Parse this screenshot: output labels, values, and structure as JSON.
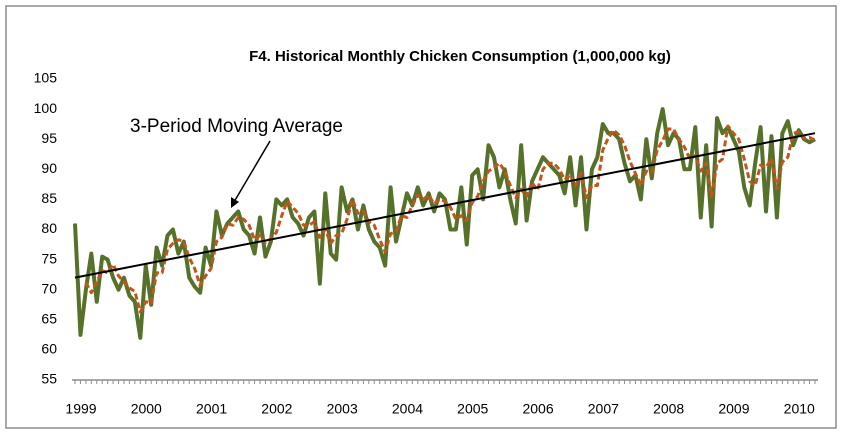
{
  "chart_data": {
    "type": "line",
    "title": "F4.  Historical Monthly Chicken Consumption (1,000,000 kg)",
    "annotation": "3-Period Moving Average",
    "categories": [
      "1999",
      null,
      null,
      null,
      null,
      null,
      null,
      null,
      null,
      null,
      null,
      null,
      "2000",
      null,
      null,
      null,
      null,
      null,
      null,
      null,
      null,
      null,
      null,
      null,
      "2001",
      null,
      null,
      null,
      null,
      null,
      null,
      null,
      null,
      null,
      null,
      null,
      "2002",
      null,
      null,
      null,
      null,
      null,
      null,
      null,
      null,
      null,
      null,
      null,
      "2003",
      null,
      null,
      null,
      null,
      null,
      null,
      null,
      null,
      null,
      null,
      null,
      "2004",
      null,
      null,
      null,
      null,
      null,
      null,
      null,
      null,
      null,
      null,
      null,
      "2005",
      null,
      null,
      null,
      null,
      null,
      null,
      null,
      null,
      null,
      null,
      null,
      "2006",
      null,
      null,
      null,
      null,
      null,
      null,
      null,
      null,
      null,
      null,
      null,
      "2007",
      null,
      null,
      null,
      null,
      null,
      null,
      null,
      null,
      null,
      null,
      null,
      "2008",
      null,
      null,
      null,
      null,
      null,
      null,
      null,
      null,
      null,
      null,
      null,
      "2009",
      null,
      null,
      null,
      null,
      null,
      null,
      null,
      null,
      null,
      null,
      null,
      "2010",
      null,
      null,
      null,
      null
    ],
    "series": [
      {
        "color": "#56722a",
        "dashed": false,
        "values": [
          81,
          62.5,
          70,
          76,
          68,
          75.5,
          75,
          72,
          70,
          72,
          69,
          68,
          62,
          74,
          67.5,
          77,
          74,
          79,
          80,
          76,
          78,
          72,
          70.5,
          69.5,
          77,
          74,
          83,
          79,
          81,
          82,
          83,
          80,
          79,
          76,
          82,
          75.5,
          78,
          85,
          84,
          85,
          82,
          81,
          79,
          82,
          83,
          71,
          86,
          76,
          75,
          87,
          83,
          85,
          80,
          84,
          80,
          78,
          77,
          74,
          87,
          78,
          82,
          86,
          84,
          87,
          84,
          86,
          83,
          86,
          85,
          80,
          80,
          87,
          77.5,
          89,
          90,
          85,
          94,
          92,
          87,
          90,
          85,
          81,
          94,
          81.5,
          88,
          90,
          92,
          91,
          90,
          89,
          86,
          92,
          84,
          92,
          80,
          90,
          92,
          97.5,
          96,
          96,
          95,
          91,
          88,
          89,
          85,
          95,
          88.5,
          96,
          100,
          94,
          96,
          95,
          90,
          90,
          97,
          82,
          94,
          80.5,
          98.5,
          96,
          97,
          95,
          93,
          87,
          84,
          91,
          97,
          83,
          95.5,
          82,
          96,
          98,
          94,
          96.5,
          95,
          94.5,
          95
        ]
      },
      {
        "color": "#c0561a",
        "dashed": true,
        "values": [
          null,
          null,
          71.2,
          69.5,
          71.3,
          73.2,
          72.8,
          74.2,
          72.3,
          71.3,
          70.3,
          69.7,
          66.3,
          68,
          67.8,
          72.8,
          72.8,
          76.7,
          77.7,
          78.3,
          78,
          75.3,
          73.5,
          70.7,
          72.3,
          73.5,
          78,
          78.7,
          81,
          80.7,
          82,
          81.7,
          80.7,
          78.3,
          79,
          77.8,
          78.5,
          79.5,
          82.3,
          84.7,
          83.7,
          82.7,
          80.7,
          80.7,
          81.3,
          78.7,
          80,
          77.7,
          79,
          79.3,
          81.7,
          85,
          82.7,
          83,
          81.3,
          80.7,
          78.3,
          76.3,
          79.3,
          79.7,
          82.3,
          82,
          84,
          85.7,
          85,
          85.7,
          84.3,
          85,
          84.7,
          83.7,
          81.7,
          82.3,
          81.5,
          84.5,
          85.5,
          88,
          89.7,
          90.3,
          91,
          89.7,
          87.3,
          85.3,
          86.7,
          85.5,
          87.8,
          86.5,
          90,
          91,
          91,
          90,
          88.3,
          89,
          87.3,
          89.3,
          85.3,
          87.3,
          87.3,
          93.2,
          95.2,
          96.5,
          95.7,
          94,
          91.3,
          89.3,
          87.3,
          89.7,
          89.5,
          93.2,
          94.8,
          96.7,
          96.7,
          95,
          93.7,
          91.7,
          92.3,
          89.7,
          91,
          85.5,
          91,
          91.7,
          97.2,
          96,
          95,
          91.7,
          88,
          87.3,
          90.7,
          90.3,
          91.8,
          86.8,
          91.2,
          92,
          96,
          96.2,
          95.2,
          95.3,
          94.8
        ]
      }
    ],
    "trendline": {
      "color": "#000000",
      "values": [
        72,
        96
      ]
    },
    "ylim": [
      55,
      105
    ],
    "yticks": [
      55,
      60,
      65,
      70,
      75,
      80,
      85,
      90,
      95,
      100,
      105
    ],
    "grid": false
  }
}
